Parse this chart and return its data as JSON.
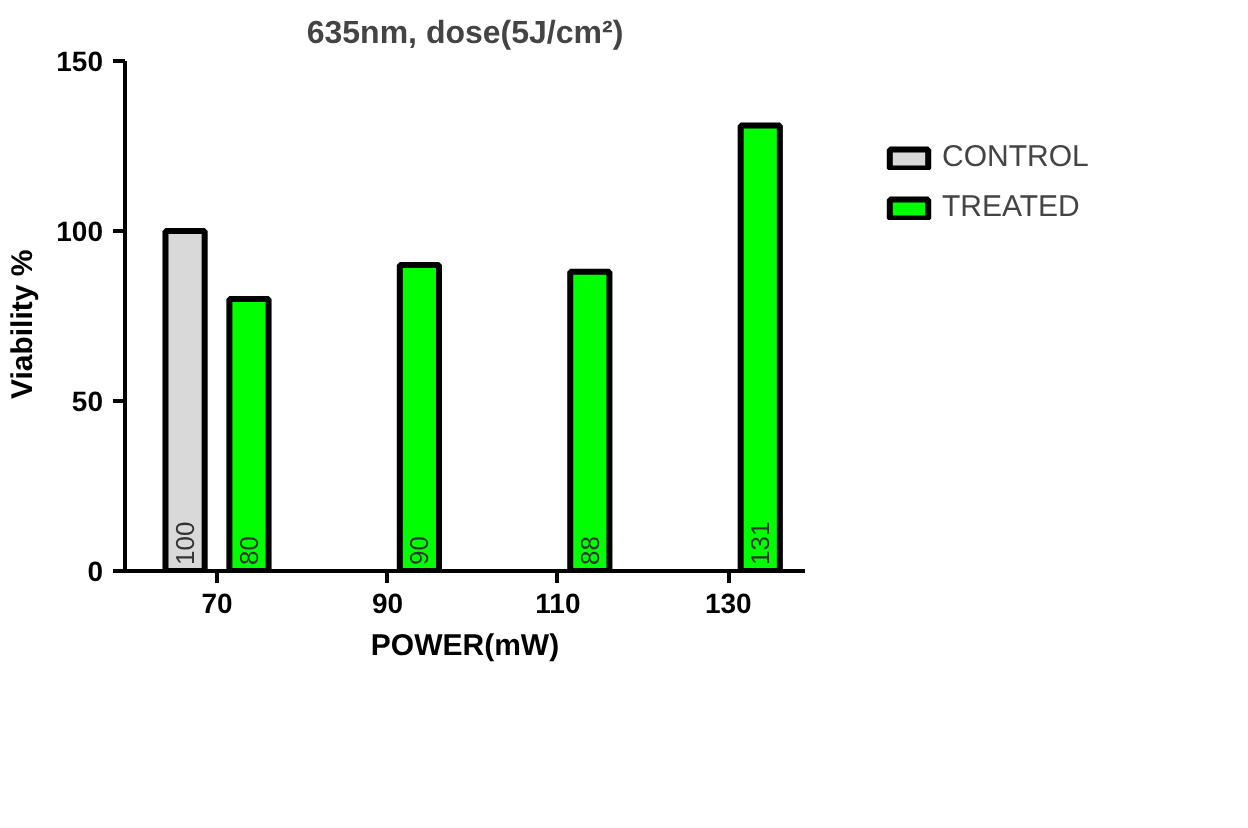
{
  "chart_data": {
    "type": "bar",
    "title": "635nm, dose(5J/cm²)",
    "xlabel": "POWER(mW)",
    "ylabel": "Viability   %",
    "categories": [
      "70",
      "90",
      "110",
      "130"
    ],
    "series": [
      {
        "name": "CONTROL",
        "color": "#d9d9d9",
        "values": [
          100,
          null,
          null,
          null
        ]
      },
      {
        "name": "TREATED",
        "color": "#00ff00",
        "values": [
          80,
          90,
          88,
          131
        ]
      }
    ],
    "ylim": [
      0,
      150
    ],
    "yticks": [
      0,
      50,
      100,
      150
    ],
    "grid": false,
    "legend": "top right",
    "data_labels": true
  }
}
